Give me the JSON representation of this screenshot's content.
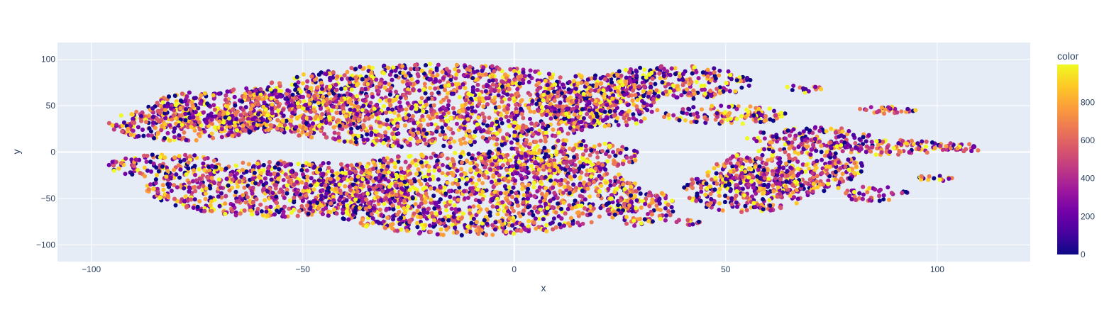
{
  "chart_data": {
    "type": "scatter",
    "title": "",
    "xlabel": "x",
    "ylabel": "y",
    "xlim": [
      -108,
      122
    ],
    "ylim": [
      -118,
      118
    ],
    "xticks": [
      -100,
      -50,
      0,
      50,
      100
    ],
    "xtick_labels": [
      "−100",
      "−50",
      "0",
      "50",
      "100"
    ],
    "yticks": [
      -100,
      -50,
      0,
      50,
      100
    ],
    "ytick_labels": [
      "−100",
      "−50",
      "0",
      "50",
      "100"
    ],
    "grid": true,
    "zeroline": true,
    "plot_background": "#e5ecf6",
    "marker_opacity": 1,
    "colorscale": "plasma",
    "colorscale_stops": [
      "#0d0887",
      "#46039f",
      "#7201a8",
      "#9c179e",
      "#bd3786",
      "#d8576b",
      "#ed7953",
      "#fb9f3a",
      "#fdca26",
      "#f0f921"
    ],
    "color_range": [
      0,
      999
    ],
    "colorbar": {
      "title": "color",
      "ticks": [
        0,
        200,
        400,
        600,
        800
      ],
      "tick_labels": [
        "0",
        "200",
        "400",
        "600",
        "800"
      ],
      "placement": "right"
    },
    "clusters": [
      {
        "cx": -20,
        "cy": 50,
        "rx": 45,
        "ry": 45
      },
      {
        "cx": -60,
        "cy": 45,
        "rx": 28,
        "ry": 24
      },
      {
        "cx": -78,
        "cy": 30,
        "rx": 18,
        "ry": 18
      },
      {
        "cx": -82,
        "cy": -15,
        "rx": 14,
        "ry": 13
      },
      {
        "cx": -55,
        "cy": -40,
        "rx": 32,
        "ry": 30
      },
      {
        "cx": -10,
        "cy": -45,
        "rx": 40,
        "ry": 45
      },
      {
        "cx": 10,
        "cy": -5,
        "rx": 20,
        "ry": 18
      },
      {
        "cx": 20,
        "cy": 55,
        "rx": 15,
        "ry": 30
      },
      {
        "cx": 38,
        "cy": 75,
        "rx": 18,
        "ry": 18
      },
      {
        "cx": 50,
        "cy": 40,
        "rx": 15,
        "ry": 10
      },
      {
        "cx": 55,
        "cy": -40,
        "rx": 15,
        "ry": 25
      },
      {
        "cx": 70,
        "cy": 15,
        "rx": 15,
        "ry": 12
      },
      {
        "cx": 65,
        "cy": -20,
        "rx": 18,
        "ry": 25
      },
      {
        "cx": 85,
        "cy": -45,
        "rx": 8,
        "ry": 8
      },
      {
        "cx": 88,
        "cy": 45,
        "rx": 7,
        "ry": 4
      },
      {
        "cx": 68,
        "cy": 68,
        "rx": 5,
        "ry": 4
      },
      {
        "cx": 88,
        "cy": 5,
        "rx": 15,
        "ry": 8
      },
      {
        "cx": 105,
        "cy": 5,
        "rx": 6,
        "ry": 5
      },
      {
        "cx": 100,
        "cy": -28,
        "rx": 5,
        "ry": 3
      },
      {
        "cx": 30,
        "cy": -60,
        "rx": 8,
        "ry": 20
      },
      {
        "cx": 40,
        "cy": -75,
        "rx": 4,
        "ry": 4
      }
    ],
    "n_points": 11000
  }
}
